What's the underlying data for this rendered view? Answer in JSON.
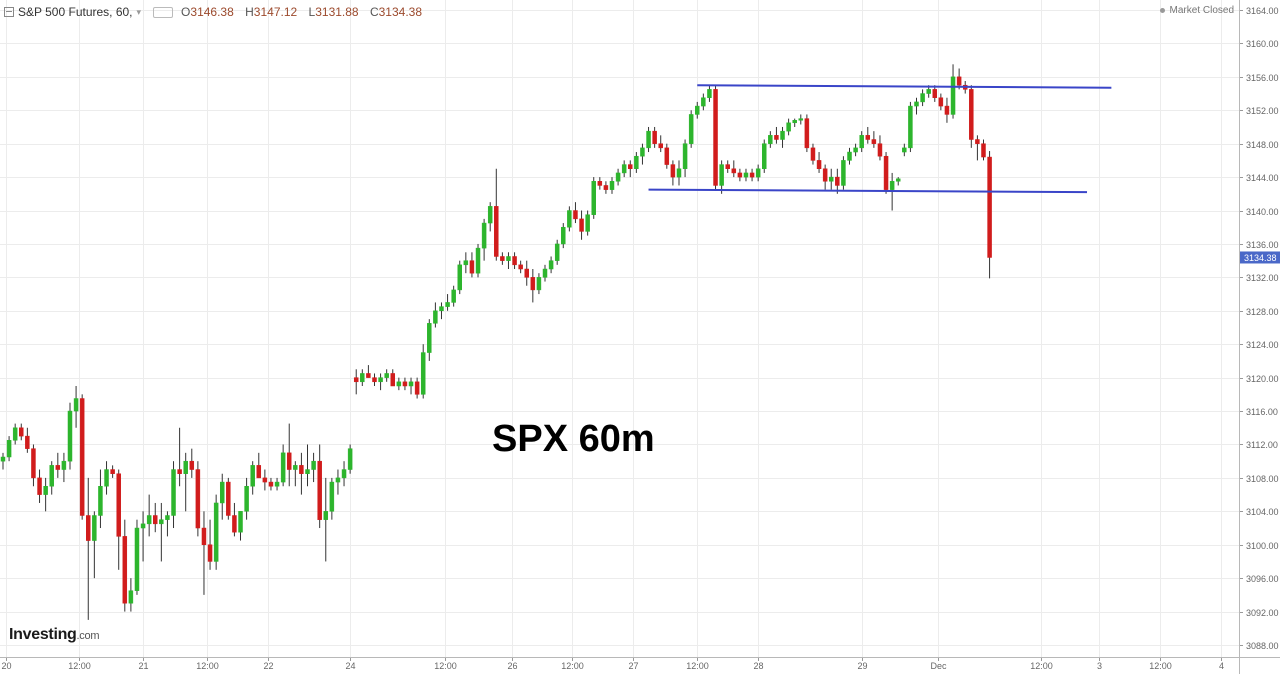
{
  "header": {
    "title": "S&P 500 Futures, 60,",
    "o_key": "O",
    "o_val": "3146.38",
    "h_key": "H",
    "h_val": "3147.12",
    "l_key": "L",
    "l_val": "3131.88",
    "c_key": "C",
    "c_val": "3134.38"
  },
  "market_status": "Market Closed",
  "logo": {
    "name": "Investing",
    "suffix": ".com"
  },
  "annotation": "SPX 60m",
  "colors": {
    "up": "#2db52d",
    "down": "#d11c1c",
    "trendline": "#3a45c8",
    "grid": "#ececec",
    "price_label_bg": "#4a68c8",
    "axis_text": "#666666"
  },
  "chart_data": {
    "type": "candlestick",
    "title": "S&P 500 Futures, 60",
    "ylim": [
      3086,
      3166
    ],
    "grid": true,
    "last_price": "3134.38",
    "y_ticks": [
      "3164.00",
      "3160.00",
      "3156.00",
      "3152.00",
      "3148.00",
      "3144.00",
      "3140.00",
      "3136.00",
      "3132.00",
      "3128.00",
      "3124.00",
      "3120.00",
      "3116.00",
      "3112.00",
      "3108.00",
      "3104.00",
      "3100.00",
      "3096.00",
      "3092.00",
      "3088.00"
    ],
    "x_ticks": [
      {
        "label": "20",
        "index": 0.5
      },
      {
        "label": "12:00",
        "index": 12.5
      },
      {
        "label": "21",
        "index": 23
      },
      {
        "label": "12:00",
        "index": 33.5
      },
      {
        "label": "22",
        "index": 43.5
      },
      {
        "label": "24",
        "index": 57
      },
      {
        "label": "12:00",
        "index": 72.5
      },
      {
        "label": "26",
        "index": 83.5
      },
      {
        "label": "12:00",
        "index": 93.5
      },
      {
        "label": "27",
        "index": 103.5
      },
      {
        "label": "12:00",
        "index": 114
      },
      {
        "label": "28",
        "index": 124
      },
      {
        "label": "29",
        "index": 141
      },
      {
        "label": "Dec",
        "index": 153.5
      },
      {
        "label": "12:00",
        "index": 170.5
      },
      {
        "label": "3",
        "index": 180
      },
      {
        "label": "12:00",
        "index": 190
      },
      {
        "label": "4",
        "index": 200
      }
    ],
    "trendlines": [
      {
        "name": "resistance",
        "start": {
          "index": 114,
          "price": 3155.0
        },
        "end": {
          "index": 182,
          "price": 3154.7
        }
      },
      {
        "name": "support",
        "start": {
          "index": 106,
          "price": 3142.5
        },
        "end": {
          "index": 178,
          "price": 3142.2
        }
      }
    ],
    "candles": [
      [
        3110,
        3111,
        3109,
        3110.5
      ],
      [
        3110.5,
        3113,
        3110,
        3112.5
      ],
      [
        3112.5,
        3114.5,
        3112,
        3114
      ],
      [
        3114,
        3114.5,
        3112.5,
        3113
      ],
      [
        3113,
        3114,
        3111,
        3111.5
      ],
      [
        3111.5,
        3112,
        3107,
        3108
      ],
      [
        3108,
        3109,
        3105,
        3106
      ],
      [
        3106,
        3108,
        3104,
        3107
      ],
      [
        3107,
        3110,
        3106,
        3109.5
      ],
      [
        3109.5,
        3111,
        3108,
        3109
      ],
      [
        3109,
        3111,
        3107.5,
        3110
      ],
      [
        3110,
        3117,
        3109,
        3116
      ],
      [
        3116,
        3119,
        3114,
        3117.5
      ],
      [
        3117.5,
        3118,
        3103,
        3103.5
      ],
      [
        3103.5,
        3108,
        3091,
        3100.5
      ],
      [
        3100.5,
        3104,
        3096,
        3103.5
      ],
      [
        3103.5,
        3109,
        3102,
        3107
      ],
      [
        3107,
        3110,
        3106,
        3109
      ],
      [
        3109,
        3109.5,
        3108,
        3108.5
      ],
      [
        3108.5,
        3109,
        3097,
        3101
      ],
      [
        3101,
        3103,
        3092,
        3093
      ],
      [
        3093,
        3096,
        3092,
        3094.5
      ],
      [
        3094.5,
        3103,
        3094,
        3102
      ],
      [
        3102,
        3104,
        3098,
        3102.5
      ],
      [
        3102.5,
        3106,
        3101,
        3103.5
      ],
      [
        3103.5,
        3105,
        3101.5,
        3102.5
      ],
      [
        3102.5,
        3105,
        3098,
        3103
      ],
      [
        3103,
        3104,
        3101,
        3103.5
      ],
      [
        3103.5,
        3110,
        3102,
        3109
      ],
      [
        3109,
        3114,
        3107,
        3108.5
      ],
      [
        3108.5,
        3111,
        3104,
        3110
      ],
      [
        3110,
        3111.5,
        3108,
        3109
      ],
      [
        3109,
        3110,
        3101,
        3102
      ],
      [
        3102,
        3104,
        3094,
        3100
      ],
      [
        3100,
        3103,
        3097,
        3098
      ],
      [
        3098,
        3106,
        3097,
        3105
      ],
      [
        3105,
        3108.5,
        3103,
        3107.5
      ],
      [
        3107.5,
        3108,
        3103,
        3103.5
      ],
      [
        3103.5,
        3105,
        3101,
        3101.5
      ],
      [
        3101.5,
        3104,
        3100.5,
        3104
      ],
      [
        3104,
        3108,
        3103,
        3107
      ],
      [
        3107,
        3110,
        3106,
        3109.5
      ],
      [
        3109.5,
        3111,
        3108,
        3108
      ],
      [
        3108,
        3109,
        3106.5,
        3107.5
      ],
      [
        3107.5,
        3108,
        3106.5,
        3107
      ],
      [
        3107,
        3108,
        3106.5,
        3107.5
      ],
      [
        3107.5,
        3112,
        3107,
        3111
      ],
      [
        3111,
        3114.5,
        3107,
        3109
      ],
      [
        3109,
        3110,
        3107,
        3109.5
      ],
      [
        3109.5,
        3111,
        3106,
        3108.5
      ],
      [
        3108.5,
        3112,
        3107,
        3109
      ],
      [
        3109,
        3111,
        3107.5,
        3110
      ],
      [
        3110,
        3112,
        3102,
        3103
      ],
      [
        3103,
        3108,
        3098,
        3104
      ],
      [
        3104,
        3108,
        3103,
        3107.5
      ],
      [
        3107.5,
        3109,
        3106,
        3108
      ],
      [
        3108,
        3110,
        3107,
        3109
      ],
      [
        3109,
        3112,
        3108.5,
        3111.5
      ],
      [
        3120,
        3121,
        3118,
        3119.5
      ],
      [
        3119.5,
        3121,
        3119,
        3120.5
      ],
      [
        3120.5,
        3121.5,
        3120,
        3120
      ],
      [
        3120,
        3120.5,
        3119,
        3119.5
      ],
      [
        3119.5,
        3120.5,
        3118.5,
        3120
      ],
      [
        3120,
        3121,
        3119.5,
        3120.5
      ],
      [
        3120.5,
        3121,
        3119,
        3119
      ],
      [
        3119,
        3120,
        3118.5,
        3119.5
      ],
      [
        3119.5,
        3120,
        3118.5,
        3119
      ],
      [
        3119,
        3120,
        3118,
        3119.5
      ],
      [
        3119.5,
        3120,
        3117.5,
        3118
      ],
      [
        3118,
        3124,
        3117.5,
        3123
      ],
      [
        3123,
        3127,
        3122,
        3126.5
      ],
      [
        3126.5,
        3129,
        3126,
        3128
      ],
      [
        3128,
        3129,
        3127,
        3128.5
      ],
      [
        3128.5,
        3130,
        3128,
        3129
      ],
      [
        3129,
        3131,
        3128.5,
        3130.5
      ],
      [
        3130.5,
        3134,
        3130,
        3133.5
      ],
      [
        3133.5,
        3135,
        3132.5,
        3134
      ],
      [
        3134,
        3135,
        3132,
        3132.5
      ],
      [
        3132.5,
        3136,
        3132,
        3135.5
      ],
      [
        3135.5,
        3139,
        3134,
        3138.5
      ],
      [
        3138.5,
        3141,
        3137.5,
        3140.5
      ],
      [
        3140.5,
        3145,
        3134,
        3134.5
      ],
      [
        3134.5,
        3135,
        3133.5,
        3134
      ],
      [
        3134,
        3135,
        3133,
        3134.5
      ],
      [
        3134.5,
        3135,
        3133,
        3133.5
      ],
      [
        3133.5,
        3134,
        3132.5,
        3133
      ],
      [
        3133,
        3134,
        3131,
        3132
      ],
      [
        3132,
        3133,
        3129,
        3130.5
      ],
      [
        3130.5,
        3132.5,
        3130,
        3132
      ],
      [
        3132,
        3133.5,
        3131.5,
        3133
      ],
      [
        3133,
        3134.5,
        3132.5,
        3134
      ],
      [
        3134,
        3136.5,
        3133.5,
        3136
      ],
      [
        3136,
        3138.5,
        3135.5,
        3138
      ],
      [
        3138,
        3140.5,
        3137.5,
        3140
      ],
      [
        3140,
        3141,
        3138.5,
        3139
      ],
      [
        3139,
        3140,
        3136.5,
        3137.5
      ],
      [
        3137.5,
        3140,
        3137,
        3139.5
      ],
      [
        3139.5,
        3144,
        3139,
        3143.5
      ],
      [
        3143.5,
        3144,
        3142.5,
        3143
      ],
      [
        3143,
        3143.5,
        3142,
        3142.5
      ],
      [
        3142.5,
        3144,
        3142,
        3143.5
      ],
      [
        3143.5,
        3145,
        3143,
        3144.5
      ],
      [
        3144.5,
        3146,
        3144,
        3145.5
      ],
      [
        3145.5,
        3146,
        3144,
        3145
      ],
      [
        3145,
        3147,
        3144.5,
        3146.5
      ],
      [
        3146.5,
        3148,
        3145.5,
        3147.5
      ],
      [
        3147.5,
        3150,
        3147,
        3149.5
      ],
      [
        3149.5,
        3150,
        3147.5,
        3148
      ],
      [
        3148,
        3149,
        3147,
        3147.5
      ],
      [
        3147.5,
        3148,
        3145,
        3145.5
      ],
      [
        3145.5,
        3146,
        3143,
        3144
      ],
      [
        3144,
        3146,
        3143,
        3145
      ],
      [
        3145,
        3148.5,
        3144,
        3148
      ],
      [
        3148,
        3152,
        3147.5,
        3151.5
      ],
      [
        3151.5,
        3153,
        3151,
        3152.5
      ],
      [
        3152.5,
        3154,
        3152,
        3153.5
      ],
      [
        3153.5,
        3155,
        3153,
        3154.5
      ],
      [
        3154.5,
        3155,
        3142.5,
        3143
      ],
      [
        3143,
        3146,
        3142,
        3145.5
      ],
      [
        3145.5,
        3146,
        3144.5,
        3145
      ],
      [
        3145,
        3146,
        3144,
        3144.5
      ],
      [
        3144.5,
        3145,
        3143.5,
        3144
      ],
      [
        3144,
        3145,
        3143.5,
        3144.5
      ],
      [
        3144.5,
        3145,
        3143.5,
        3144
      ],
      [
        3144,
        3145.5,
        3143.5,
        3145
      ],
      [
        3145,
        3148.5,
        3144.5,
        3148
      ],
      [
        3148,
        3149.5,
        3147.5,
        3149
      ],
      [
        3149,
        3150,
        3148,
        3148.5
      ],
      [
        3148.5,
        3150,
        3147.5,
        3149.5
      ],
      [
        3149.5,
        3151,
        3149,
        3150.5
      ],
      [
        3150.5,
        3151,
        3150,
        3150.8
      ],
      [
        3150.8,
        3151.5,
        3150.3,
        3151
      ],
      [
        3151,
        3151.5,
        3147,
        3147.5
      ],
      [
        3147.5,
        3148,
        3145.5,
        3146
      ],
      [
        3146,
        3147,
        3144.5,
        3145
      ],
      [
        3145,
        3145.5,
        3142.5,
        3143.5
      ],
      [
        3143.5,
        3145,
        3142.5,
        3144
      ],
      [
        3144,
        3145,
        3142,
        3143
      ],
      [
        3143,
        3146.5,
        3142.5,
        3146
      ],
      [
        3146,
        3147.5,
        3145.5,
        3147
      ],
      [
        3147,
        3148,
        3146.5,
        3147.5
      ],
      [
        3147.5,
        3149.5,
        3147,
        3149
      ],
      [
        3149,
        3150,
        3148,
        3148.5
      ],
      [
        3148.5,
        3149.5,
        3147.5,
        3148
      ],
      [
        3148,
        3149,
        3146,
        3146.5
      ],
      [
        3146.5,
        3147,
        3142,
        3142.5
      ],
      [
        3142.5,
        3144.5,
        3140,
        3143.5
      ],
      [
        3143.5,
        3144,
        3143,
        3143.8
      ],
      [
        3147,
        3148,
        3146.5,
        3147.5
      ],
      [
        3147.5,
        3153,
        3147,
        3152.5
      ],
      [
        3152.5,
        3153.5,
        3151.5,
        3153
      ],
      [
        3153,
        3154.5,
        3152.5,
        3154
      ],
      [
        3154,
        3155,
        3153.5,
        3154.5
      ],
      [
        3154.5,
        3155,
        3153,
        3153.5
      ],
      [
        3153.5,
        3154,
        3152,
        3152.5
      ],
      [
        3152.5,
        3153.5,
        3150.5,
        3151.5
      ],
      [
        3151.5,
        3157.5,
        3151,
        3156
      ],
      [
        3156,
        3157,
        3154.5,
        3155
      ],
      [
        3155,
        3155.5,
        3154,
        3154.5
      ],
      [
        3154.5,
        3155,
        3147.5,
        3148.5
      ],
      [
        3148.5,
        3149,
        3146,
        3148
      ],
      [
        3148,
        3148.5,
        3146,
        3146.4
      ],
      [
        3146.4,
        3147.12,
        3131.88,
        3134.38
      ]
    ]
  }
}
